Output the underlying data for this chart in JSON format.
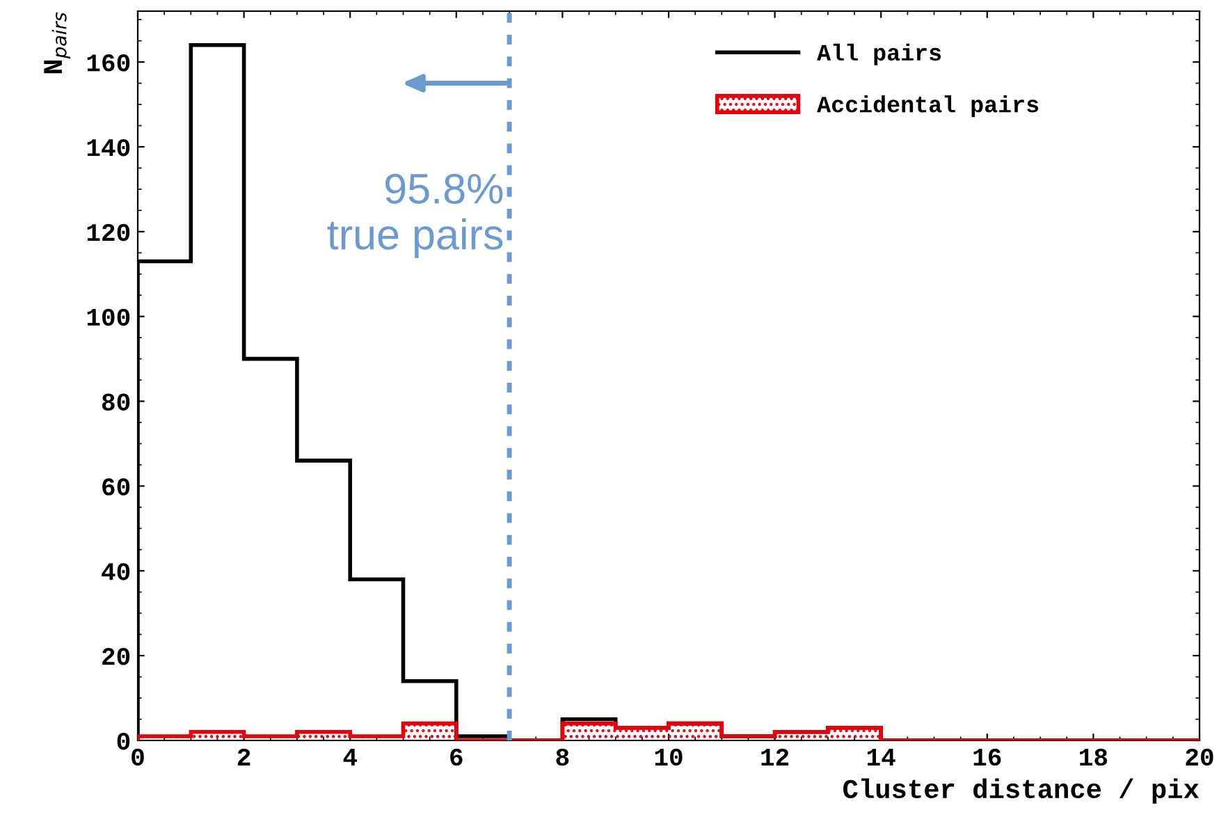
{
  "chart_data": {
    "type": "histogram",
    "xlabel": "Cluster distance / pix",
    "ylabel": "N$_{pairs}$",
    "bins": [
      0,
      1,
      2,
      3,
      4,
      5,
      6,
      7,
      8,
      9,
      10,
      11,
      12,
      13,
      14,
      15,
      16,
      17,
      18,
      19,
      20
    ],
    "series": [
      {
        "name": "All pairs",
        "color": "#000000",
        "values": [
          113,
          164,
          90,
          66,
          38,
          14,
          1,
          0,
          5,
          3,
          4,
          1,
          2,
          3,
          0,
          0,
          0,
          0,
          0,
          0
        ]
      },
      {
        "name": "Accidental pairs",
        "color": "#e8000b",
        "values": [
          1,
          2,
          1,
          2,
          1,
          4,
          0,
          0,
          4,
          3,
          4,
          1,
          2,
          3,
          0,
          0,
          0,
          0,
          0,
          0
        ]
      }
    ],
    "xlim": [
      0,
      20
    ],
    "xticks": [
      0,
      2,
      4,
      6,
      8,
      10,
      12,
      14,
      16,
      18,
      20
    ],
    "ylim": [
      0,
      172
    ],
    "yticks": [
      0,
      20,
      40,
      60,
      80,
      100,
      120,
      140,
      160
    ],
    "ref_lines": [
      {
        "axis": "x",
        "value": 7,
        "color": "#6a9ad0",
        "line_style": "dotted"
      }
    ],
    "annotations": [
      "95.8%\ntrue pairs"
    ],
    "legend": "top right",
    "grid": false
  }
}
